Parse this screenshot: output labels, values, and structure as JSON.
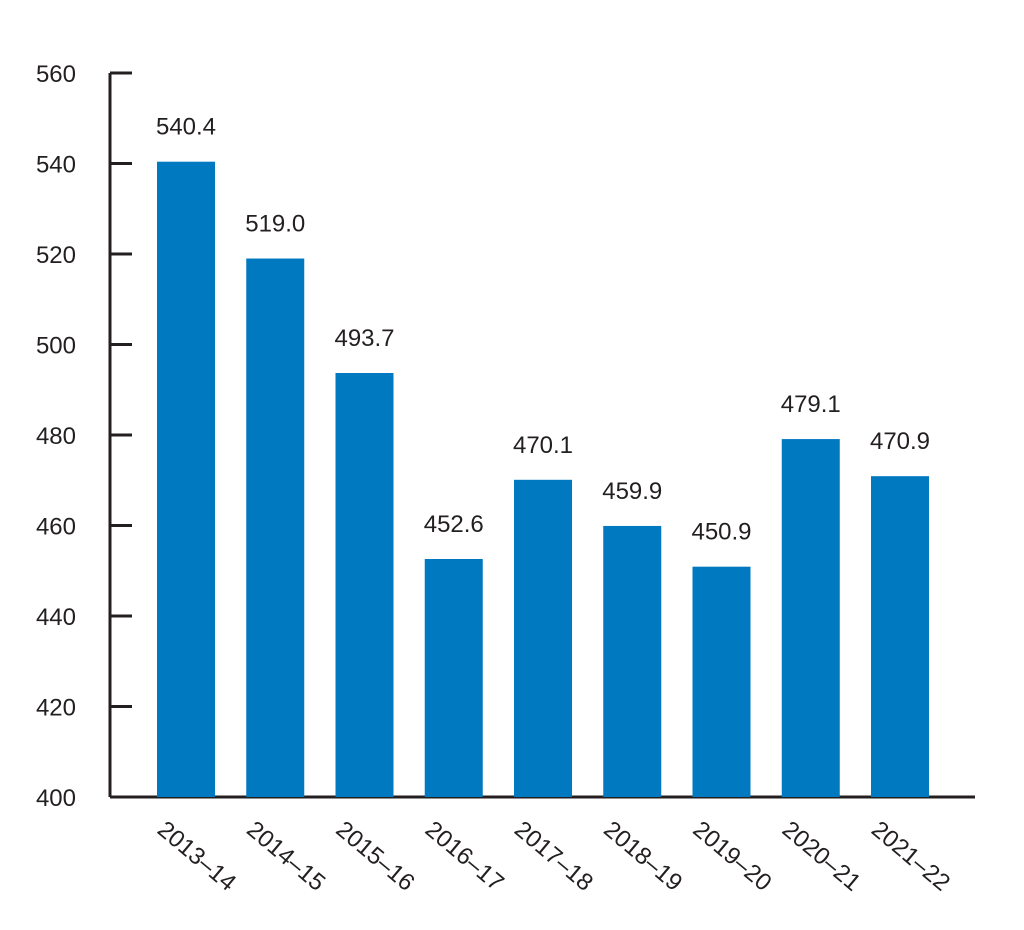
{
  "chart_data": {
    "type": "bar",
    "title": "",
    "xlabel": "",
    "ylabel": "",
    "categories": [
      "2013–14",
      "2014–15",
      "2015–16",
      "2016–17",
      "2017–18",
      "2018–19",
      "2019–20",
      "2020–21",
      "2021–22"
    ],
    "values": [
      540.4,
      519.0,
      493.7,
      452.6,
      470.1,
      459.9,
      450.9,
      479.1,
      470.9
    ],
    "value_labels": [
      "540.4",
      "519.0",
      "493.7",
      "452.6",
      "470.1",
      "459.9",
      "450.9",
      "479.1",
      "470.9"
    ],
    "ylim": [
      400,
      560
    ],
    "yticks": [
      400,
      420,
      440,
      460,
      480,
      500,
      520,
      540,
      560
    ],
    "grid": false,
    "legend": "none",
    "bar_color": "#0079c1",
    "axis_color": "#231f20"
  }
}
